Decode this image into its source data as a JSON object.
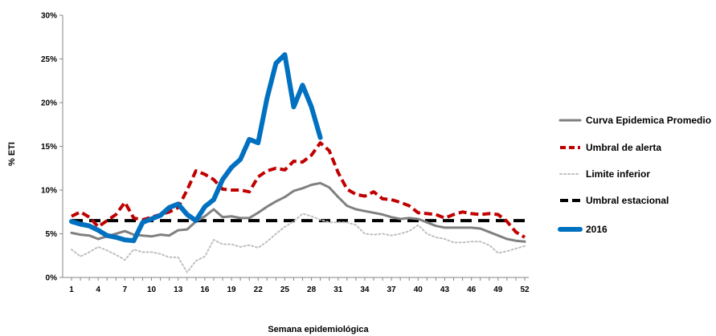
{
  "chart_data": {
    "type": "line",
    "title": "",
    "xlabel": "Semana epidemiológica",
    "ylabel": "% ETI",
    "xlim": [
      1,
      52
    ],
    "ylim": [
      0,
      30
    ],
    "x_ticks": [
      1,
      4,
      7,
      10,
      13,
      16,
      19,
      22,
      25,
      28,
      31,
      34,
      37,
      40,
      43,
      46,
      49,
      52
    ],
    "y_ticks": [
      "0%",
      "5%",
      "10%",
      "15%",
      "20%",
      "25%",
      "30%"
    ],
    "y_tick_values": [
      0,
      5,
      10,
      15,
      20,
      25,
      30
    ],
    "grid": false,
    "legend_position": "right",
    "series": [
      {
        "name": "Curva Epidemica Promedio",
        "color": "#808080",
        "style": "solid",
        "x": [
          1,
          2,
          3,
          4,
          5,
          6,
          7,
          8,
          9,
          10,
          11,
          12,
          13,
          14,
          15,
          16,
          17,
          18,
          19,
          20,
          21,
          22,
          23,
          24,
          25,
          26,
          27,
          28,
          29,
          30,
          31,
          32,
          33,
          34,
          35,
          36,
          37,
          38,
          39,
          40,
          41,
          42,
          43,
          44,
          45,
          46,
          47,
          48,
          49,
          50,
          51,
          52
        ],
        "values": [
          5.1,
          4.9,
          4.8,
          4.4,
          4.7,
          5.0,
          5.3,
          4.9,
          4.8,
          4.7,
          4.9,
          4.8,
          5.4,
          5.5,
          6.4,
          7.0,
          7.8,
          6.9,
          7.0,
          6.8,
          6.8,
          7.4,
          8.1,
          8.7,
          9.2,
          9.9,
          10.2,
          10.6,
          10.8,
          10.3,
          9.2,
          8.2,
          7.8,
          7.6,
          7.4,
          7.2,
          6.9,
          6.7,
          6.8,
          6.7,
          6.3,
          5.9,
          5.7,
          5.7,
          5.7,
          5.7,
          5.6,
          5.2,
          4.8,
          4.4,
          4.2,
          4.1
        ]
      },
      {
        "name": "Umbral de alerta",
        "color": "#c00000",
        "style": "dashed",
        "x": [
          1,
          2,
          3,
          4,
          5,
          6,
          7,
          8,
          9,
          10,
          11,
          12,
          13,
          14,
          15,
          16,
          17,
          18,
          19,
          20,
          21,
          22,
          23,
          24,
          25,
          26,
          27,
          28,
          29,
          30,
          31,
          32,
          33,
          34,
          35,
          36,
          37,
          38,
          39,
          40,
          41,
          42,
          43,
          44,
          45,
          46,
          47,
          48,
          49,
          50,
          51,
          52
        ],
        "values": [
          7.0,
          7.5,
          6.9,
          5.8,
          6.5,
          7.2,
          8.6,
          6.8,
          6.6,
          6.9,
          7.2,
          7.5,
          8.0,
          10.0,
          12.2,
          11.8,
          11.2,
          10.1,
          10.0,
          10.0,
          9.8,
          11.5,
          12.2,
          12.5,
          12.3,
          13.3,
          13.2,
          14.0,
          15.4,
          14.5,
          12.0,
          10.1,
          9.5,
          9.3,
          9.8,
          9.0,
          8.9,
          8.6,
          8.2,
          7.4,
          7.3,
          7.2,
          6.8,
          7.2,
          7.5,
          7.3,
          7.2,
          7.3,
          7.2,
          6.4,
          5.2,
          4.6
        ]
      },
      {
        "name": "Limite inferior",
        "color": "#bfbfbf",
        "style": "dotted",
        "x": [
          1,
          2,
          3,
          4,
          5,
          6,
          7,
          8,
          9,
          10,
          11,
          12,
          13,
          14,
          15,
          16,
          17,
          18,
          19,
          20,
          21,
          22,
          23,
          24,
          25,
          26,
          27,
          28,
          29,
          30,
          31,
          32,
          33,
          34,
          35,
          36,
          37,
          38,
          39,
          40,
          41,
          42,
          43,
          44,
          45,
          46,
          47,
          48,
          49,
          50,
          51,
          52
        ],
        "values": [
          3.2,
          2.4,
          2.9,
          3.5,
          3.1,
          2.6,
          2.0,
          3.2,
          2.9,
          2.9,
          2.7,
          2.3,
          2.3,
          0.6,
          1.9,
          2.4,
          4.3,
          3.8,
          3.8,
          3.5,
          3.7,
          3.4,
          4.1,
          5.0,
          5.8,
          6.4,
          7.3,
          7.0,
          6.6,
          6.3,
          6.3,
          6.3,
          6.0,
          5.0,
          4.9,
          5.0,
          4.8,
          5.0,
          5.3,
          6.0,
          5.0,
          4.6,
          4.4,
          4.0,
          4.0,
          4.1,
          4.1,
          3.7,
          2.8,
          3.0,
          3.3,
          3.6
        ]
      },
      {
        "name": "Umbral estacional",
        "color": "#000000",
        "style": "dashed",
        "x": [
          1,
          52
        ],
        "values": [
          6.5,
          6.5
        ]
      },
      {
        "name": "2016",
        "color": "#0070c0",
        "style": "solid",
        "x": [
          1,
          2,
          3,
          4,
          5,
          6,
          7,
          8,
          9,
          10,
          11,
          12,
          13,
          14,
          15,
          16,
          17,
          18,
          19,
          20,
          21,
          22,
          23,
          24,
          25,
          26,
          27,
          28,
          29
        ],
        "values": [
          6.4,
          6.1,
          5.9,
          5.4,
          4.8,
          4.6,
          4.3,
          4.2,
          6.3,
          6.7,
          7.1,
          8.0,
          8.4,
          7.2,
          6.5,
          8.1,
          8.9,
          11.2,
          12.6,
          13.5,
          15.8,
          15.4,
          20.5,
          24.5,
          25.5,
          19.5,
          22.0,
          19.5,
          16.0
        ]
      }
    ]
  }
}
